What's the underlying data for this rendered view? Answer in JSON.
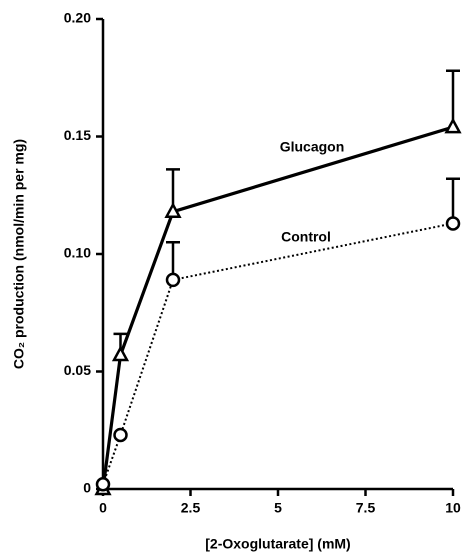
{
  "chart_data": {
    "type": "line",
    "x_label": "[2-Oxoglutarate] (mM)",
    "y_label": "CO₂ production (nmol/min per mg)",
    "xlim": [
      0,
      10
    ],
    "xticks": [
      0,
      2.5,
      5,
      7.5,
      10
    ],
    "ylim": [
      0,
      0.2
    ],
    "yticks": [
      0,
      0.05,
      {
        "value": 0.1,
        "label": "0.10"
      },
      0.15,
      {
        "value": 0.2,
        "label": "0.20"
      }
    ],
    "series": [
      {
        "name": "Glucagon",
        "color": "#000000",
        "line_style": "solid",
        "marker": "triangle",
        "x": [
          0,
          0.5,
          2,
          10
        ],
        "values": [
          0,
          0.057,
          0.118,
          0.154
        ],
        "errors": [
          null,
          0.009,
          0.018,
          0.024
        ]
      },
      {
        "name": "Control",
        "color": "#000000",
        "line_style": "dotted",
        "marker": "circle",
        "x": [
          0,
          0.5,
          2,
          10
        ],
        "values": [
          0.002,
          0.023,
          0.089,
          0.113
        ],
        "errors": [
          null,
          null,
          0.016,
          0.019
        ]
      }
    ]
  }
}
